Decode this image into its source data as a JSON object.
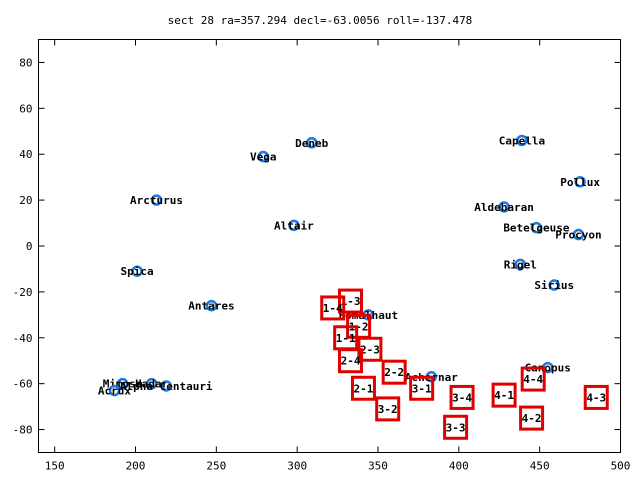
{
  "chart_data": {
    "type": "scatter",
    "title": "sect 28 ra=357.294 decl=-63.0056 roll=-137.478",
    "xlabel": "",
    "ylabel": "",
    "xlim": [
      140,
      500
    ],
    "ylim": [
      -90,
      90
    ],
    "xticks": [
      150,
      200,
      250,
      300,
      350,
      400,
      450,
      500
    ],
    "yticks": [
      -80,
      -60,
      -40,
      -20,
      0,
      20,
      40,
      60,
      80
    ],
    "grid": false,
    "legend": "none",
    "colors": {
      "star": "#1e78e0",
      "box": "#e00000",
      "text": "#000000"
    },
    "stars": [
      {
        "name": "Deneb",
        "x": 309,
        "y": 45
      },
      {
        "name": "Vega",
        "x": 279,
        "y": 39
      },
      {
        "name": "Capella",
        "x": 439,
        "y": 46
      },
      {
        "name": "Pollux",
        "x": 475,
        "y": 28
      },
      {
        "name": "Arcturus",
        "x": 213,
        "y": 20
      },
      {
        "name": "Aldebaran",
        "x": 428,
        "y": 17
      },
      {
        "name": "Altair",
        "x": 298,
        "y": 9
      },
      {
        "name": "Betelgeuse",
        "x": 448,
        "y": 8
      },
      {
        "name": "Procyon",
        "x": 474,
        "y": 5
      },
      {
        "name": "Spica",
        "x": 201,
        "y": -11
      },
      {
        "name": "Rigel",
        "x": 438,
        "y": -8
      },
      {
        "name": "Sirius",
        "x": 459,
        "y": -17
      },
      {
        "name": "Antares",
        "x": 247,
        "y": -26
      },
      {
        "name": "Fomalhaut",
        "x": 344,
        "y": -30
      },
      {
        "name": "Achernar",
        "x": 383,
        "y": -57
      },
      {
        "name": "Canopus",
        "x": 455,
        "y": -53
      },
      {
        "name": "Mimosa",
        "x": 192,
        "y": -60
      },
      {
        "name": "Hadar",
        "x": 210,
        "y": -60
      },
      {
        "name": "Alpha Centauri",
        "x": 219,
        "y": -61
      },
      {
        "name": "Acrux",
        "x": 187,
        "y": -63
      }
    ],
    "boxes": [
      {
        "label": "1-3",
        "x": 333,
        "y": -24
      },
      {
        "label": "1-4",
        "x": 322,
        "y": -27
      },
      {
        "label": "1-2",
        "x": 338,
        "y": -35
      },
      {
        "label": "1-1",
        "x": 330,
        "y": -40
      },
      {
        "label": "2-3",
        "x": 345,
        "y": -45
      },
      {
        "name_hint": "",
        "label": "2-4",
        "x": 333,
        "y": -50
      },
      {
        "label": "2-2",
        "x": 360,
        "y": -55
      },
      {
        "label": "2-1",
        "x": 341,
        "y": -62
      },
      {
        "label": "3-1",
        "x": 377,
        "y": -62
      },
      {
        "label": "3-2",
        "x": 356,
        "y": -71
      },
      {
        "label": "3-4",
        "x": 402,
        "y": -66
      },
      {
        "label": "3-3",
        "x": 398,
        "y": -79
      },
      {
        "label": "4-4",
        "x": 446,
        "y": -58
      },
      {
        "label": "4-1",
        "x": 428,
        "y": -65
      },
      {
        "label": "4-3",
        "x": 485,
        "y": -66
      },
      {
        "label": "4-2",
        "x": 445,
        "y": -75
      }
    ]
  }
}
